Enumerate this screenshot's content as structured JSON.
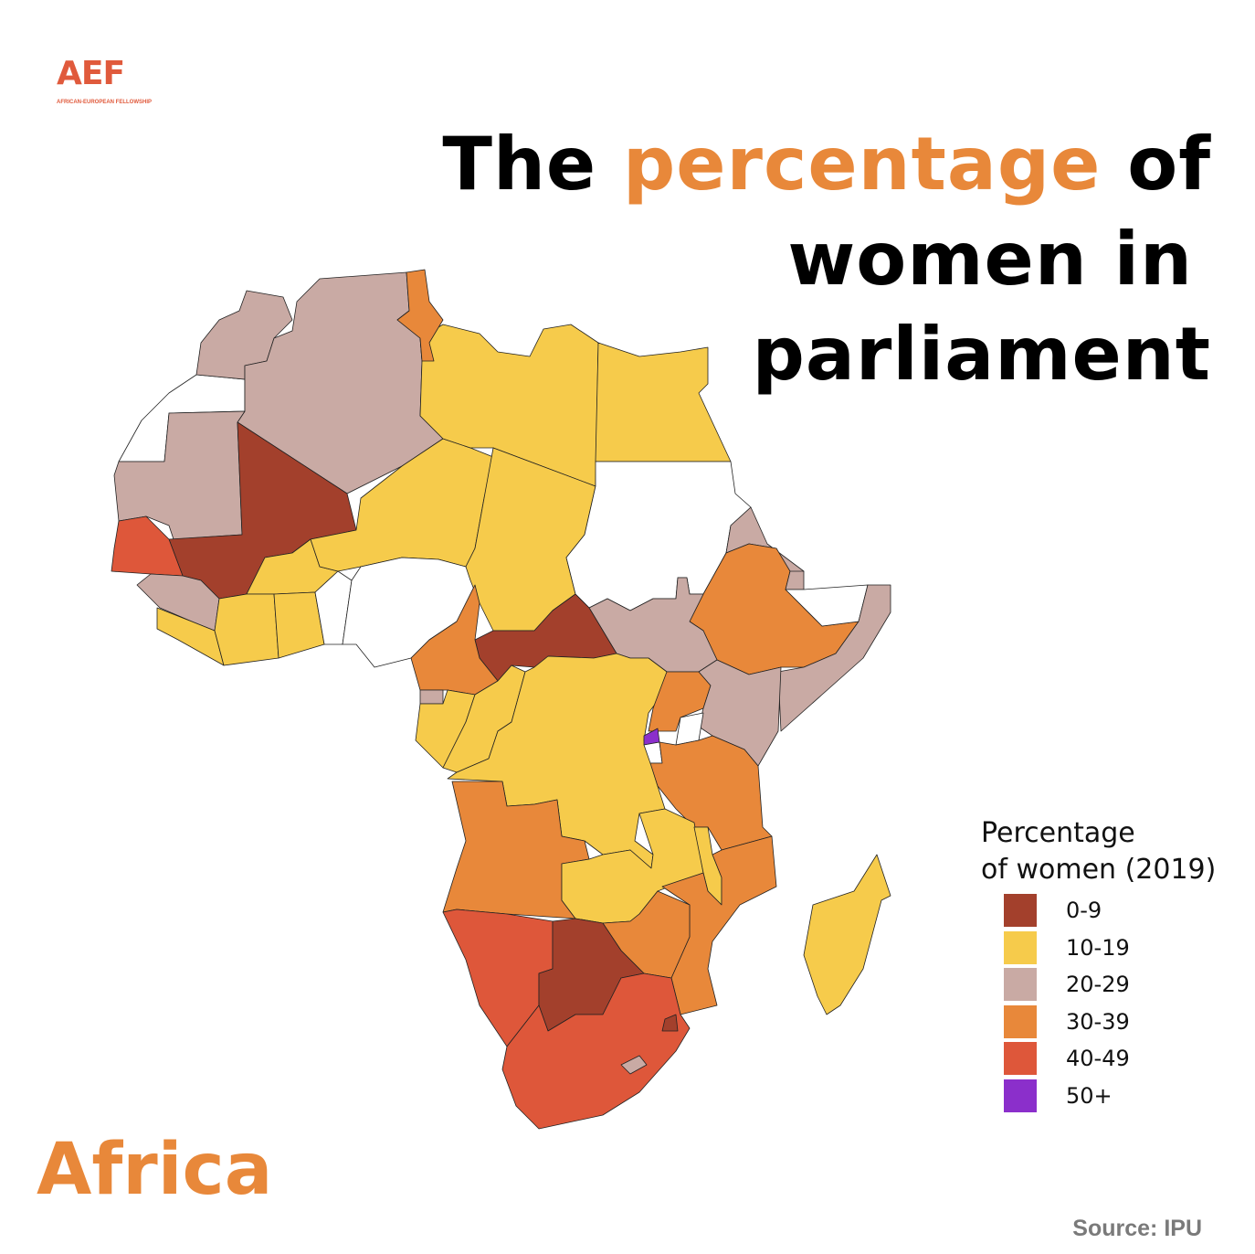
{
  "logo": {
    "mark": "AEF",
    "subtitle": "AFRICAN-EUROPEAN FELLOWSHIP"
  },
  "title": {
    "part1": "The ",
    "highlight": "percentage",
    "part2": " of",
    "line2": "women in",
    "line3": "parliament",
    "highlight_color": "#E8883A"
  },
  "region_label": "Africa",
  "source": "Source: IPU",
  "legend": {
    "title_line1": "Percentage",
    "title_line2": "of women (2019)",
    "items": [
      {
        "label": "0-9",
        "color": "#A3402C"
      },
      {
        "label": "10-19",
        "color": "#F6CB4B"
      },
      {
        "label": "20-29",
        "color": "#C9AAA4"
      },
      {
        "label": "30-39",
        "color": "#E8883A"
      },
      {
        "label": "40-49",
        "color": "#DE573A"
      },
      {
        "label": "50+",
        "color": "#8B2FCB"
      }
    ],
    "no_data_color": "#FFFFFF"
  },
  "map": {
    "regions": {
      "morocco": "20-29",
      "western-sahara": null,
      "algeria": "20-29",
      "mauritania": "20-29",
      "mali": "0-9",
      "senegal": "40-49",
      "guinea": "20-29",
      "sierra-leone-liberia": "10-19",
      "burkina-faso": "10-19",
      "cote-divoire": "10-19",
      "ghana": "10-19",
      "togo-benin": null,
      "niger": "10-19",
      "nigeria": null,
      "libya": "10-19",
      "tunisia": "30-39",
      "egypt": "10-19",
      "chad": "10-19",
      "sudan": null,
      "eritrea": "20-29",
      "ethiopia": "30-39",
      "djibouti": "20-29",
      "somaliland": null,
      "somalia": "20-29",
      "south-sudan": "20-29",
      "car": "0-9",
      "cameroon": "30-39",
      "equatorial-guinea": "20-29",
      "gabon": "10-19",
      "congo": "10-19",
      "drc": "10-19",
      "uganda": "30-39",
      "kenya": "20-29",
      "rwanda": "50+",
      "burundi": null,
      "lake-victoria": null,
      "tanzania": "30-39",
      "angola": "30-39",
      "zambia": "10-19",
      "malawi": "10-19",
      "mozambique": "30-39",
      "zimbabwe": "30-39",
      "namibia": "40-49",
      "botswana": "0-9",
      "south-africa": "40-49",
      "eswatini": "0-9",
      "lesotho": "20-29",
      "madagascar": "10-19"
    }
  }
}
